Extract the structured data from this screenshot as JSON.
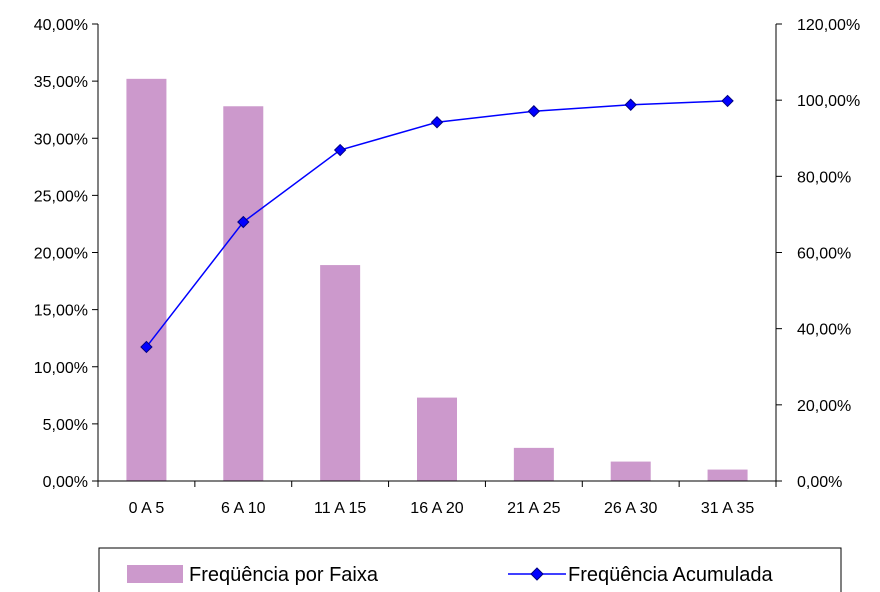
{
  "chart_data": {
    "type": "bar",
    "categories": [
      "0 A 5",
      "6 A 10",
      "11 A 15",
      "16 A 20",
      "21 A 25",
      "26 A 30",
      "31 A 35"
    ],
    "series": [
      {
        "name": "Freqüência por Faixa",
        "type": "bar",
        "axis": "left",
        "color": "#cc99cc",
        "values": [
          0.352,
          0.328,
          0.189,
          0.073,
          0.029,
          0.017,
          0.01
        ]
      },
      {
        "name": "Freqüência Acumulada",
        "type": "line",
        "axis": "right",
        "color": "#0000ff",
        "marker": "diamond",
        "values": [
          0.352,
          0.68,
          0.869,
          0.942,
          0.971,
          0.988,
          0.998
        ]
      }
    ],
    "y_left": {
      "range": [
        0,
        0.4
      ],
      "ticks": [
        0,
        0.05,
        0.1,
        0.15,
        0.2,
        0.25,
        0.3,
        0.35,
        0.4
      ],
      "tick_labels": [
        "0,00%",
        "5,00%",
        "10,00%",
        "15,00%",
        "20,00%",
        "25,00%",
        "30,00%",
        "35,00%",
        "40,00%"
      ]
    },
    "y_right": {
      "range": [
        0,
        1.2
      ],
      "ticks": [
        0,
        0.2,
        0.4,
        0.6,
        0.8,
        1.0,
        1.2
      ],
      "tick_labels": [
        "0,00%",
        "20,00%",
        "40,00%",
        "60,00%",
        "80,00%",
        "100,00%",
        "120,00%"
      ]
    },
    "title": "",
    "xlabel": "",
    "ylabel": "",
    "grid": false,
    "legend": "bottom"
  }
}
